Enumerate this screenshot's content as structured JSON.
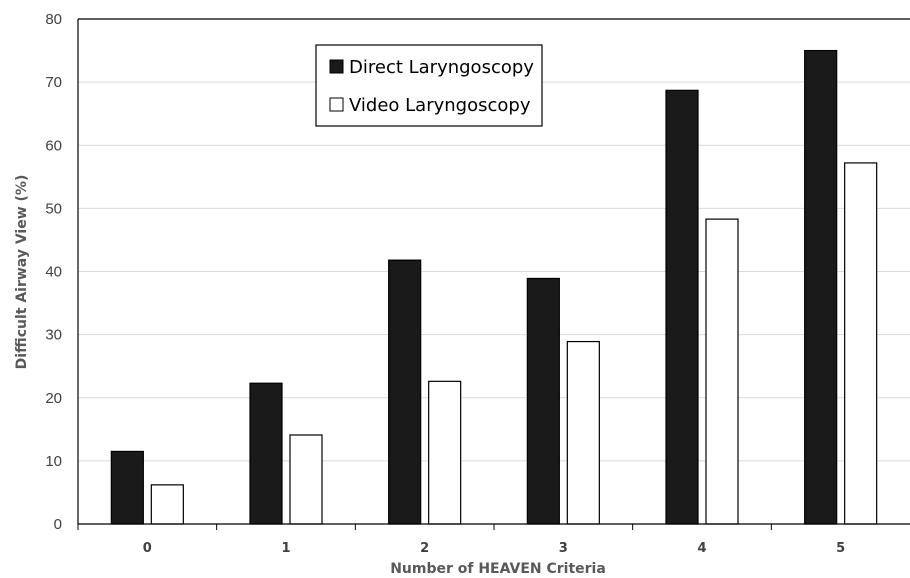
{
  "chart_data": {
    "type": "bar",
    "title": "",
    "xlabel": "Number of HEAVEN Criteria",
    "ylabel": "Difficult Airway View (%)",
    "ylim": [
      0,
      80
    ],
    "yticks": [
      0,
      10,
      20,
      30,
      40,
      50,
      60,
      70,
      80
    ],
    "grid": true,
    "legend_position": "top-center",
    "categories": [
      "0",
      "1",
      "2",
      "3",
      "4",
      "5"
    ],
    "series": [
      {
        "name": "Direct Laryngoscopy",
        "color": "#1a1a1a",
        "values": [
          11.5,
          22.3,
          41.8,
          38.9,
          68.7,
          75.0
        ]
      },
      {
        "name": "Video Laryngoscopy",
        "color": "#ffffff",
        "values": [
          6.2,
          14.1,
          22.6,
          28.9,
          48.3,
          57.2
        ]
      }
    ]
  }
}
